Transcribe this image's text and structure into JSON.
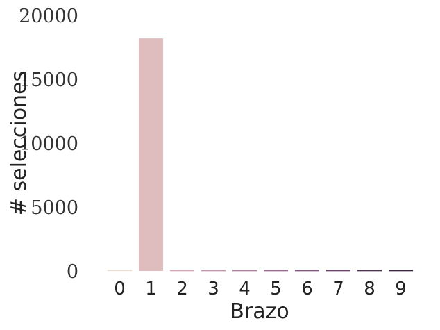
{
  "chart_data": {
    "type": "bar",
    "xlabel": "Brazo",
    "ylabel": "# selecciones",
    "categories": [
      "0",
      "1",
      "2",
      "3",
      "4",
      "5",
      "6",
      "7",
      "8",
      "9"
    ],
    "values": [
      100,
      18200,
      90,
      90,
      90,
      90,
      90,
      90,
      90,
      90
    ],
    "ylim": [
      0,
      20000
    ],
    "yticks": [
      "0",
      "5000",
      "10000",
      "15000",
      "20000"
    ],
    "grid": false,
    "legend": "none",
    "colors": [
      "#e8dfd0",
      "#dfbdbf",
      "#d4a7b4",
      "#c396ab",
      "#b0819e",
      "#9b6a8e",
      "#83587e",
      "#6a446a",
      "#513454",
      "#3b2640"
    ]
  }
}
